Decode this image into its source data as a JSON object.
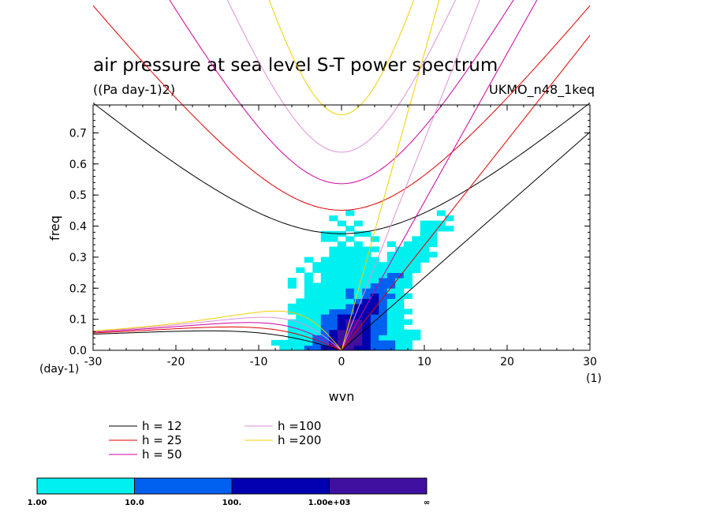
{
  "chart_data": {
    "type": "heatmap",
    "title": "air pressure at sea level S-T power spectrum",
    "subtitle": "((Pa day-1)2)",
    "model": "UKMO_n48_1keq",
    "xlabel": "wvn",
    "ylabel": "freq",
    "xunit": "(1)",
    "yunit": "(day-1)",
    "xlim": [
      -30,
      30
    ],
    "ylim": [
      0,
      0.79
    ],
    "xticks": [
      "-30",
      "-20",
      "-10",
      "0",
      "10",
      "20",
      "30"
    ],
    "xtick_values": [
      -30,
      -20,
      -10,
      0,
      10,
      20,
      30
    ],
    "yticks": [
      "0.0",
      "0.1",
      "0.2",
      "0.3",
      "0.4",
      "0.5",
      "0.6",
      "0.7"
    ],
    "ytick_values": [
      0.0,
      0.1,
      0.2,
      0.3,
      0.4,
      0.5,
      0.6,
      0.7
    ],
    "dispersion_curves": [
      {
        "name": "h = 12",
        "h": 12,
        "color": "#000000"
      },
      {
        "name": "h = 25",
        "h": 25,
        "color": "#e00000"
      },
      {
        "name": "h = 50",
        "h": 50,
        "color": "#d000a0"
      },
      {
        "name": "h =100",
        "h": 100,
        "color": "#e090d8"
      },
      {
        "name": "h =200",
        "h": 200,
        "color": "#f0d000"
      }
    ],
    "colorbar": {
      "labels": [
        "1.00",
        "10.0",
        "100.",
        "1.00e+03",
        "∞"
      ],
      "colors": [
        "#00f0f0",
        "#0060f0",
        "#0000b0",
        "#4010a0"
      ]
    },
    "power_levels_note": "power in (Pa day-1)^2, log levels 1, 10, 100, 1000"
  }
}
